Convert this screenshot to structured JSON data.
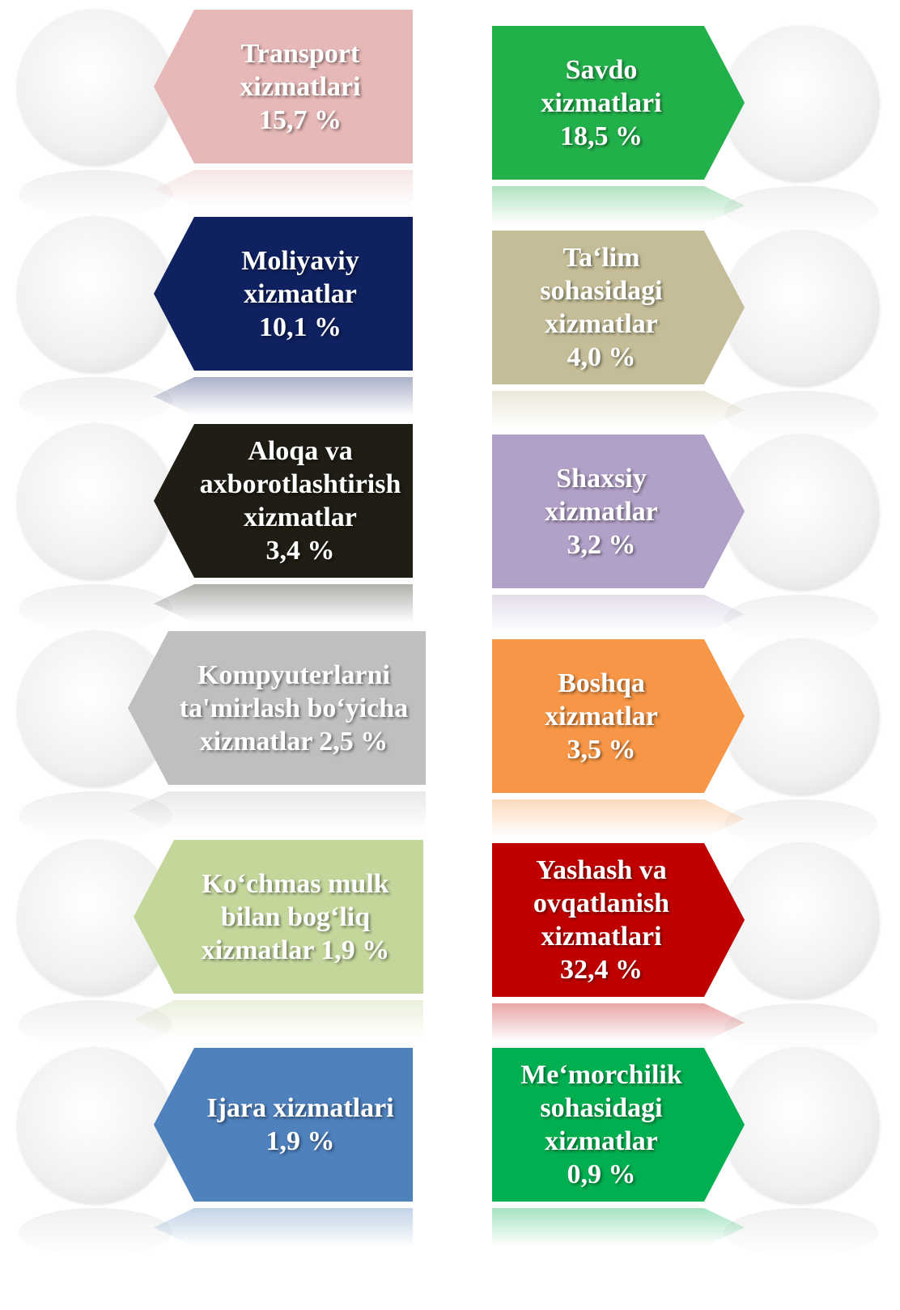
{
  "left": [
    {
      "label": "Transport xizmatlari",
      "value": "15,7 %"
    },
    {
      "label": "Moliyaviy xizmatlar",
      "value": "10,1 %"
    },
    {
      "label": "Aloqa va axborotlashtirish xizmatlar",
      "value": "3,4 %"
    },
    {
      "label": "Kompyuterlarni ta'mirlash bo‘yicha xizmatlar",
      "value": "2,5 %"
    },
    {
      "label": "Ko‘chmas mulk bilan bog‘liq xizmatlar",
      "value": "1,9 %"
    },
    {
      "label": "Ijara xizmatlari",
      "value": "1,9 %"
    }
  ],
  "right": [
    {
      "label": "Savdo xizmatlari",
      "value": "18,5 %"
    },
    {
      "label": "Ta‘lim sohasidagi xizmatlar",
      "value": "4,0 %"
    },
    {
      "label": "Shaxsiy xizmatlar",
      "value": "3,2 %"
    },
    {
      "label": "Boshqa xizmatlar",
      "value": "3,5 %"
    },
    {
      "label": "Yashash va ovqatlanish xizmatlari",
      "value": "32,4 %"
    },
    {
      "label": "Me‘morchilik sohasidagi xizmatlar",
      "value": "0,9 %"
    }
  ]
}
